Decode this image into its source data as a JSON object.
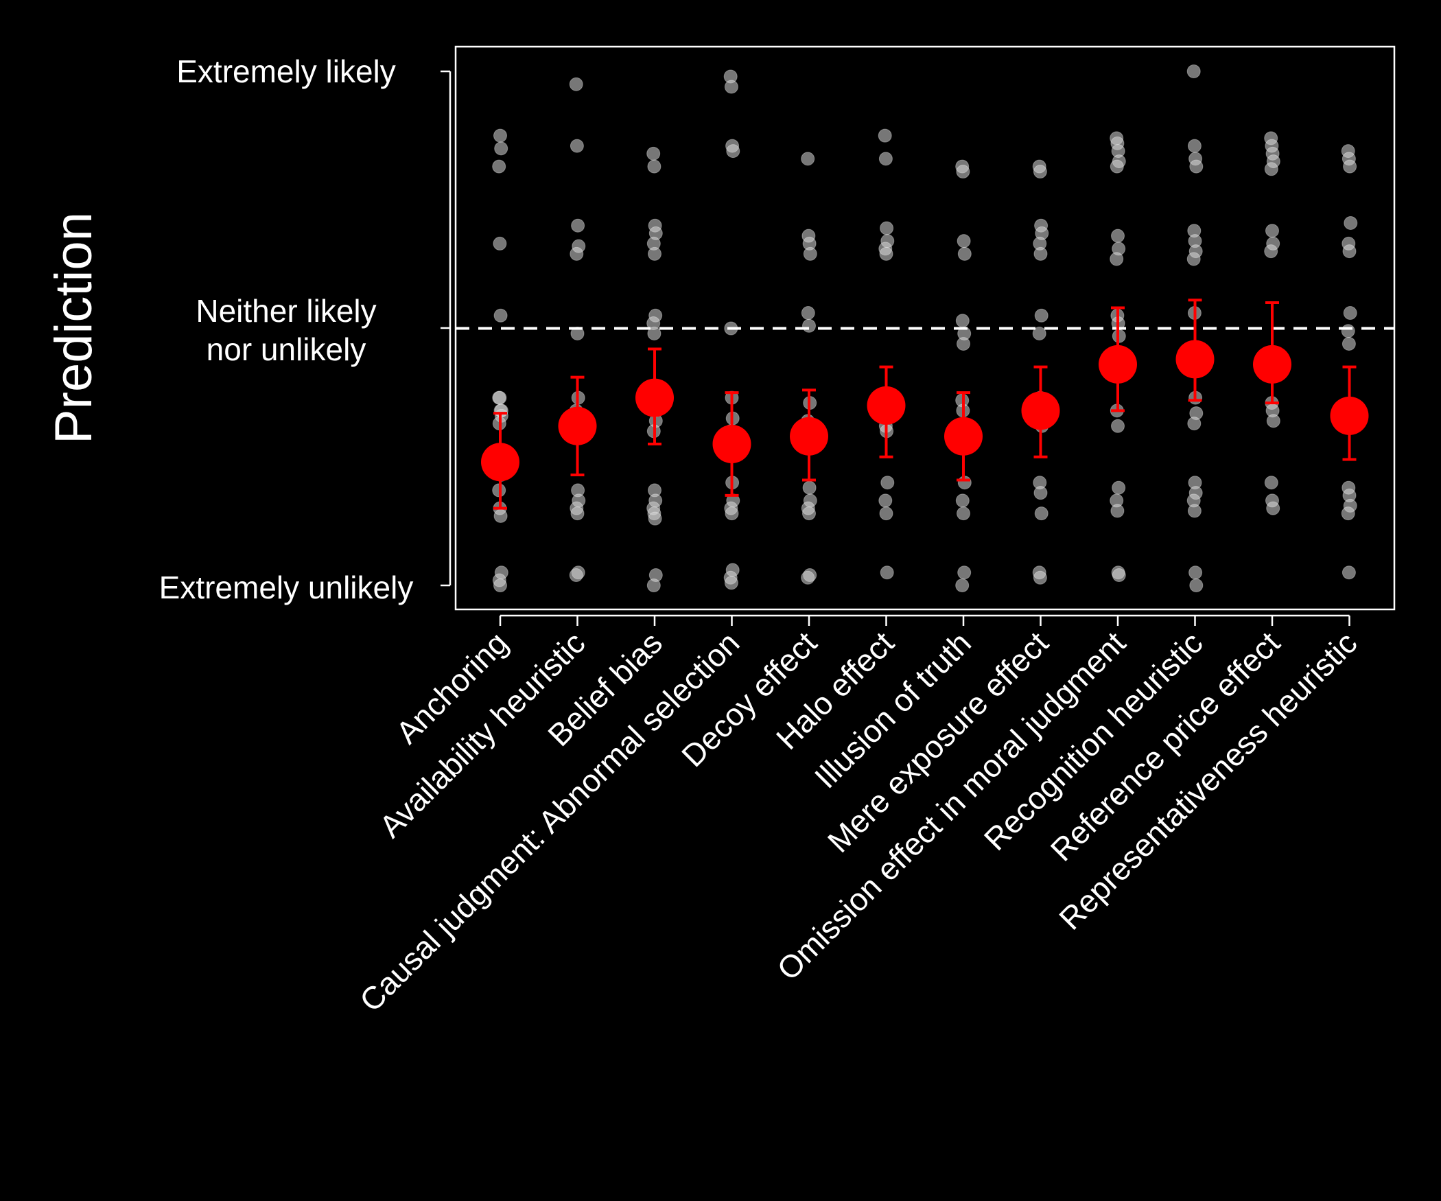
{
  "chart_data": {
    "type": "scatter",
    "title": "",
    "xlabel": "",
    "ylabel": "Prediction",
    "ylim": [
      -0.1,
      2.1
    ],
    "y_ticks": [
      {
        "value": 0,
        "label": "Extremely unlikely"
      },
      {
        "value": 1,
        "label": "Neither likely nor unlikely"
      },
      {
        "value": 2,
        "label": "Extremely likely"
      }
    ],
    "reference_line": {
      "y": 1,
      "style": "dashed",
      "color": "#ffffff"
    },
    "grid": false,
    "colors": {
      "mean": "#ff0000",
      "points": "#d9d9d9",
      "axis": "#ffffff",
      "background": "#000000"
    },
    "categories": [
      "Anchoring",
      "Availability heuristic",
      "Belief bias",
      "Causal judgment: Abnormal selection",
      "Decoy effect",
      "Halo effect",
      "Illusion of truth",
      "Mere exposure effect",
      "Omission effect in moral judgment",
      "Recognition heuristic",
      "Reference price effect",
      "Representativeness heuristic"
    ],
    "series": [
      {
        "kind": "mean",
        "values": [
          0.48,
          0.62,
          0.73,
          0.55,
          0.58,
          0.7,
          0.58,
          0.68,
          0.86,
          0.88,
          0.86,
          0.66
        ],
        "ci_low": [
          0.3,
          0.43,
          0.55,
          0.35,
          0.41,
          0.5,
          0.41,
          0.5,
          0.68,
          0.72,
          0.71,
          0.49
        ],
        "ci_high": [
          0.67,
          0.81,
          0.92,
          0.75,
          0.76,
          0.85,
          0.75,
          0.85,
          1.08,
          1.11,
          1.1,
          0.85
        ]
      },
      {
        "kind": "individual",
        "points": [
          [
            0.73,
            0.73,
            0.68,
            0.66,
            0.63,
            1.75,
            1.7,
            1.63,
            1.33,
            1.05,
            0.68,
            0.47,
            0.45,
            0.43,
            0.37,
            0.3,
            0.27,
            0.05,
            0.02,
            0.0
          ],
          [
            1.95,
            1.71,
            1.4,
            1.32,
            1.29,
            0.98,
            0.73,
            0.68,
            0.63,
            0.37,
            0.33,
            0.3,
            0.28,
            0.05,
            0.04
          ],
          [
            1.68,
            1.63,
            1.4,
            1.37,
            1.33,
            1.29,
            1.05,
            1.02,
            0.98,
            0.68,
            0.64,
            0.6,
            0.37,
            0.33,
            0.3,
            0.28,
            0.26,
            0.04,
            0.0
          ],
          [
            1.98,
            1.94,
            1.71,
            1.69,
            1.0,
            0.73,
            0.65,
            0.6,
            0.58,
            0.4,
            0.33,
            0.3,
            0.28,
            0.06,
            0.03,
            0.01
          ],
          [
            1.66,
            1.36,
            1.33,
            1.29,
            1.06,
            1.01,
            0.71,
            0.64,
            0.6,
            0.38,
            0.33,
            0.3,
            0.28,
            0.04,
            0.03
          ],
          [
            1.75,
            1.66,
            1.39,
            1.34,
            1.31,
            1.29,
            0.72,
            0.68,
            0.62,
            0.6,
            0.4,
            0.33,
            0.28,
            0.05
          ],
          [
            1.63,
            1.61,
            1.34,
            1.29,
            1.03,
            0.94,
            0.98,
            0.72,
            0.68,
            0.61,
            0.4,
            0.33,
            0.28,
            0.05,
            0.0
          ],
          [
            1.63,
            1.61,
            1.4,
            1.37,
            1.33,
            1.29,
            1.05,
            0.98,
            0.73,
            0.65,
            0.62,
            0.4,
            0.36,
            0.28,
            0.05,
            0.03
          ],
          [
            1.74,
            1.72,
            1.69,
            1.65,
            1.63,
            1.36,
            1.31,
            1.27,
            1.05,
            1.02,
            0.97,
            0.68,
            0.62,
            0.38,
            0.33,
            0.29,
            0.05,
            0.04
          ],
          [
            2.0,
            1.71,
            1.66,
            1.63,
            1.38,
            1.34,
            1.3,
            1.27,
            1.06,
            0.73,
            0.67,
            0.63,
            0.4,
            0.36,
            0.33,
            0.29,
            0.05,
            0.0
          ],
          [
            1.74,
            1.71,
            1.68,
            1.65,
            1.62,
            1.38,
            1.33,
            1.3,
            0.71,
            0.68,
            0.64,
            0.4,
            0.33,
            0.3
          ],
          [
            1.69,
            1.66,
            1.63,
            1.41,
            1.33,
            1.3,
            1.06,
            0.99,
            0.94,
            0.68,
            0.63,
            0.38,
            0.35,
            0.31,
            0.28,
            0.05
          ]
        ]
      }
    ]
  }
}
